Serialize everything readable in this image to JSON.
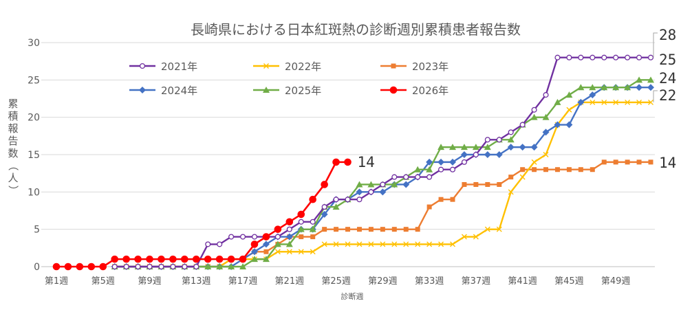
{
  "chart_data": {
    "type": "line",
    "title": "長崎県における日本紅斑熱の診断週別累積患者報告数",
    "xlabel": "診断週",
    "ylabel": "累積報告数（人）",
    "ylim": [
      0,
      30
    ],
    "yticks": [
      "0",
      "5",
      "10",
      "15",
      "20",
      "25",
      "30"
    ],
    "xtick_labels": [
      "第1週",
      "第5週",
      "第9週",
      "第13週",
      "第17週",
      "第21週",
      "第25週",
      "第29週",
      "第33週",
      "第37週",
      "第41週",
      "第45週",
      "第49週"
    ],
    "week_count": 52,
    "grid": true,
    "legend_placement": "top-left",
    "series": [
      {
        "name": "2021年",
        "color": "#7030a0",
        "marker": "circle-open",
        "values": [
          null,
          null,
          null,
          null,
          null,
          0,
          0,
          0,
          0,
          0,
          0,
          0,
          0,
          3,
          3,
          4,
          4,
          4,
          4,
          4,
          5,
          6,
          6,
          8,
          9,
          9,
          9,
          10,
          11,
          12,
          12,
          12,
          12,
          13,
          13,
          14,
          15,
          17,
          17,
          18,
          19,
          21,
          23,
          28,
          28,
          28,
          28,
          28,
          28,
          28,
          28,
          28
        ],
        "end_label": "28"
      },
      {
        "name": "2022年",
        "color": "#ffc000",
        "marker": "x",
        "values": [
          null,
          null,
          null,
          null,
          null,
          0,
          0,
          0,
          0,
          0,
          0,
          0,
          0,
          0,
          0,
          1,
          1,
          1,
          1,
          2,
          2,
          2,
          2,
          3,
          3,
          3,
          3,
          3,
          3,
          3,
          3,
          3,
          3,
          3,
          3,
          4,
          4,
          5,
          5,
          10,
          12,
          14,
          15,
          19,
          21,
          22,
          22,
          22,
          22,
          22,
          22,
          22
        ],
        "end_label": "22"
      },
      {
        "name": "2023年",
        "color": "#ed7d31",
        "marker": "square",
        "values": [
          null,
          null,
          null,
          null,
          null,
          0,
          0,
          0,
          0,
          0,
          0,
          0,
          0,
          0,
          0,
          1,
          1,
          2,
          2,
          3,
          4,
          4,
          4,
          5,
          5,
          5,
          5,
          5,
          5,
          5,
          5,
          5,
          8,
          9,
          9,
          11,
          11,
          11,
          11,
          12,
          13,
          13,
          13,
          13,
          13,
          13,
          13,
          14,
          14,
          14,
          14,
          14
        ],
        "end_label": "14"
      },
      {
        "name": "2024年",
        "color": "#4472c4",
        "marker": "diamond",
        "values": [
          null,
          null,
          null,
          null,
          null,
          0,
          0,
          0,
          0,
          0,
          0,
          0,
          0,
          0,
          0,
          0,
          1,
          2,
          3,
          4,
          4,
          5,
          5,
          7,
          9,
          9,
          10,
          10,
          10,
          11,
          11,
          12,
          14,
          14,
          14,
          15,
          15,
          15,
          15,
          16,
          16,
          16,
          18,
          19,
          19,
          22,
          23,
          24,
          24,
          24,
          24,
          24
        ],
        "end_label": "24"
      },
      {
        "name": "2025年",
        "color": "#70ad47",
        "marker": "triangle",
        "values": [
          null,
          null,
          null,
          null,
          null,
          0,
          0,
          0,
          0,
          0,
          0,
          0,
          0,
          0,
          0,
          0,
          0,
          1,
          1,
          3,
          3,
          5,
          5,
          8,
          8,
          9,
          11,
          11,
          11,
          11,
          12,
          13,
          13,
          16,
          16,
          16,
          16,
          16,
          17,
          17,
          19,
          20,
          20,
          22,
          23,
          24,
          24,
          24,
          24,
          24,
          25,
          25
        ],
        "end_label": "25"
      },
      {
        "name": "2026年",
        "color": "#ff0000",
        "marker": "circle",
        "values": [
          0,
          0,
          0,
          0,
          0,
          1,
          1,
          1,
          1,
          1,
          1,
          1,
          1,
          1,
          1,
          1,
          1,
          3,
          4,
          5,
          6,
          7,
          9,
          11,
          14,
          14
        ],
        "end_label": "14"
      }
    ]
  }
}
